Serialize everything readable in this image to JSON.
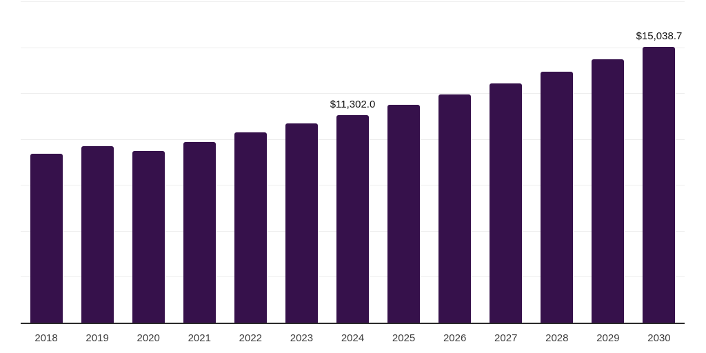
{
  "chart_data": {
    "type": "bar",
    "title": "",
    "xlabel": "",
    "ylabel": "",
    "categories": [
      "2018",
      "2019",
      "2020",
      "2021",
      "2022",
      "2023",
      "2024",
      "2025",
      "2026",
      "2027",
      "2028",
      "2029",
      "2030"
    ],
    "values": [
      9205,
      9600,
      9350,
      9825,
      10375,
      10845,
      11302.0,
      11853,
      12431,
      13038,
      13674,
      14341,
      15038.7
    ],
    "bar_labels": {
      "2024": "$11,302.0",
      "2030": "$15,038.7"
    },
    "ylim": [
      0,
      17500
    ],
    "gridline_step": 2500,
    "grid": true,
    "legend": false,
    "y_axis_tick_labels_visible": false,
    "style": {
      "bar_color": "#36114b",
      "grid_color": "#ededed",
      "axis_color": "#2b2b2b",
      "tick_label_color": "#3d3d3d",
      "value_label_color": "#111111"
    }
  }
}
